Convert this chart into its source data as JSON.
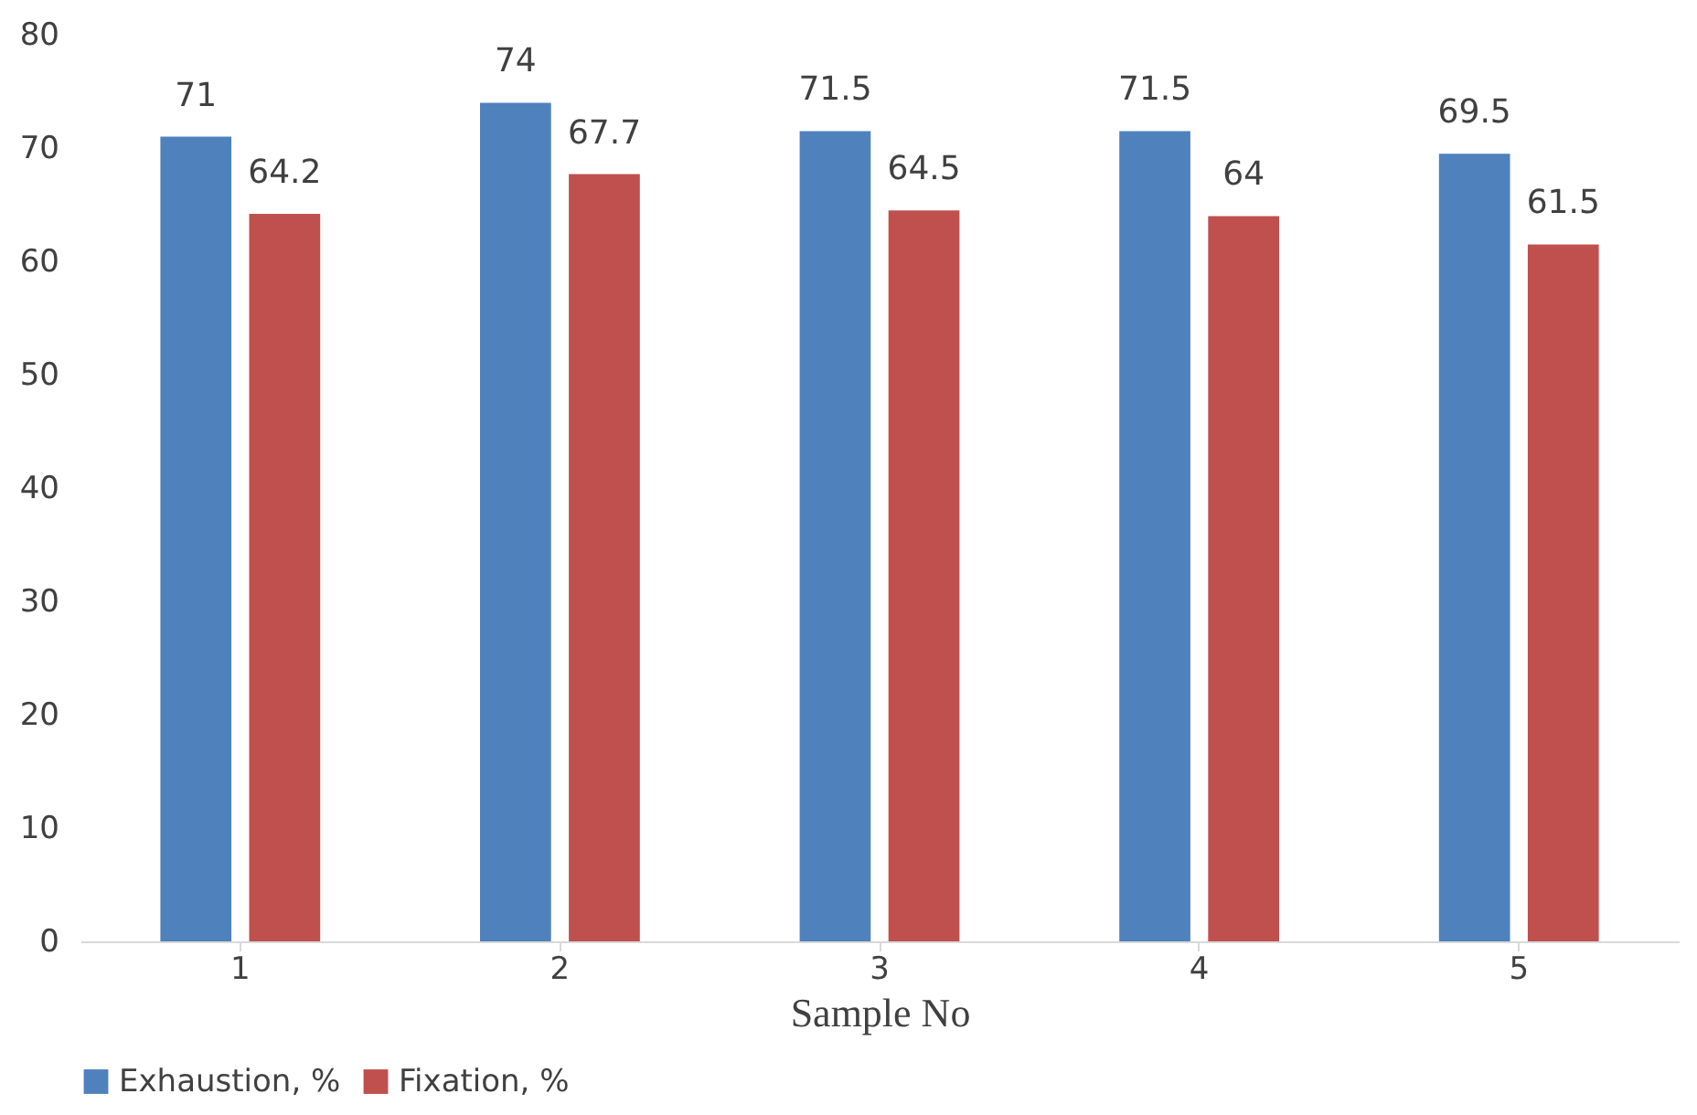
{
  "chart_data": {
    "type": "bar",
    "xlabel": "Sample No",
    "categories": [
      "1",
      "2",
      "3",
      "4",
      "5"
    ],
    "series": [
      {
        "name": "Exhaustion, %",
        "color": "#4f81bd",
        "values": [
          71,
          74,
          71.5,
          71.5,
          69.5
        ]
      },
      {
        "name": "Fixation, %",
        "color": "#c0504d",
        "values": [
          64.2,
          67.7,
          64.5,
          64,
          61.5
        ]
      }
    ],
    "ylim": [
      0,
      80
    ],
    "yticks": [
      0,
      10,
      20,
      30,
      40,
      50,
      60,
      70,
      80
    ],
    "data_labels": true,
    "grid": false,
    "legend": "bottom"
  }
}
